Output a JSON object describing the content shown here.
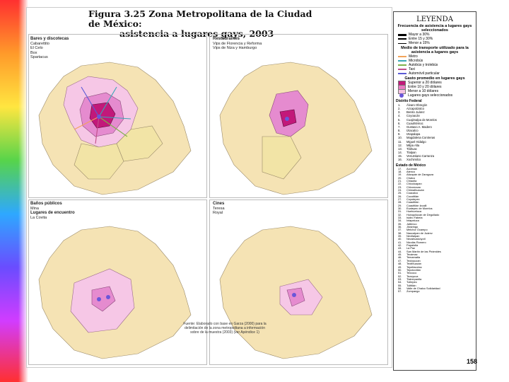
{
  "title_line1": "Figura 3.25 Zona Metropolitana de la Ciudad de México:",
  "title_line2": "asistencia a lugares gays, 2003",
  "panels": {
    "tl": {
      "head": "Bares y discotecas",
      "items": [
        "Cabarettito",
        "El Celo",
        "Box",
        "Spartacus"
      ]
    },
    "tr": {
      "head": "Restaurantes",
      "items": [
        "Vips de Florencia y Reforma",
        "Vips de Niza y Hamburgo"
      ]
    },
    "bl": {
      "head": "Baños públicos",
      "items": [
        "Mina"
      ],
      "head2": "Lugares de encuentro",
      "items2": [
        "La Covita"
      ]
    },
    "br": {
      "head": "Cines",
      "items": [
        "Teresa",
        "Royal"
      ]
    }
  },
  "legend": {
    "title": "LEYENDA",
    "freq_title": "Frecuencia de asistencia a lugares gays seleccionados",
    "freq": [
      "Mayor a 30%",
      "Entre 15 y 30%",
      "Menor a 15%"
    ],
    "transport_title": "Medio de transporte utilizado para la asistencia a lugares gays",
    "transport": [
      "Metro",
      "Microbús",
      "Autobús y trolebús",
      "Taxi",
      "Automóvil particular"
    ],
    "spend_title": "Gasto promedio en lugares gays",
    "spend": [
      "Superior a 20 dólares",
      "Entre 10 y 20 dólares",
      "Menor a 10 dólares"
    ],
    "places": "Lugares gays seleccionados",
    "df_title": "Distrito Federal",
    "df": [
      "Álvaro Obregón",
      "Azcapotzalco",
      "Benito Juárez",
      "Coyoacán",
      "Cuajimalpa de Morelos",
      "Cuauhtémoc",
      "Gustavo A. Madero",
      "Iztacalco",
      "Iztapalapa",
      "Magdalena Contreras",
      "Miguel Hidalgo",
      "Milpa Alta",
      "Tláhuac",
      "Tlalpan",
      "Venustiano Carranza",
      "Xochimilco"
    ],
    "edomex_title": "Estado de México",
    "edomex": [
      "Acolman",
      "Atenco",
      "Atizapán de Zaragoza",
      "Chalco",
      "Chiautla",
      "Chicoloapan",
      "Chiconcuac",
      "Chimalhuacán",
      "Coacalco",
      "Cocotitlán",
      "Coyotepec",
      "Cuautitlán",
      "Cuautitlán Izcalli",
      "Ecatepec de Morelos",
      "Huehuetoca",
      "Huixquilucan de Degollado",
      "Isidro Fabela",
      "Ixtapaluca",
      "Jaltenco",
      "Jilotzingo",
      "Melchor Ocampo",
      "Naucalpan de Juárez",
      "Nextlalpan",
      "Nezahualcóyotl",
      "Nicolás Romero",
      "Papalotla",
      "La Paz",
      "San Martín de las Pirámides",
      "Tecámac",
      "Temamatla",
      "Teoloyucan",
      "Teotihuacán",
      "Tepetlaoxtoc",
      "Tepotzotlán",
      "Texcoco",
      "Tezoyuca",
      "Tlalnepantla",
      "Tultepec",
      "Tultitlán",
      "Valle de Chalco Solidaridad",
      "Zumpango"
    ],
    "df_colors": {
      "freq": [
        "#000000",
        "#000000",
        "#000000"
      ],
      "transport": [
        "#f2a35a",
        "#3aa7b5",
        "#7fb24a",
        "#c24f8a",
        "#5b5bd6"
      ],
      "spend": [
        "#c2187a",
        "#e97cc3",
        "#f4c2e2"
      ],
      "place": "#6a56d9"
    }
  },
  "source_text": "Fuente: Elaborado con base en Garza (2000) para la delimitación de la zona metropolitana a información sobre de la muestra (2003) (ver Apéndice 1)",
  "page_number": "158"
}
